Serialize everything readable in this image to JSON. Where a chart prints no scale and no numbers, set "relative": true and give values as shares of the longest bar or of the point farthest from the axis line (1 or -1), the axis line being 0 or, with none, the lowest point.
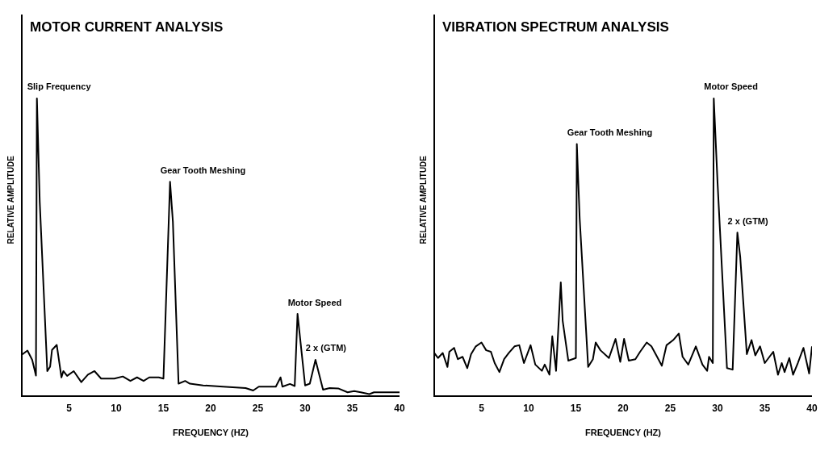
{
  "chart_data": [
    {
      "type": "line",
      "title": "MOTOR CURRENT ANALYSIS",
      "xlabel": "FREQUENCY (HZ)",
      "ylabel": "RELATIVE AMPLITUDE",
      "relative": true,
      "xlim": [
        0,
        40
      ],
      "xticks": [
        5,
        10,
        15,
        20,
        25,
        30,
        35,
        40
      ],
      "legend": false,
      "marker": "none",
      "line_style": "solid",
      "series": [
        {
          "color": "#000000",
          "x": [
            0,
            0.6,
            1.1,
            1.5,
            1.6,
            1.9,
            2.7,
            3.0,
            3.2,
            3.7,
            4.2,
            4.4,
            4.8,
            5.5,
            6.3,
            7.0,
            7.7,
            8.4,
            9.8,
            10.7,
            11.5,
            12.2,
            12.9,
            13.5,
            14.5,
            15.0,
            15.7,
            16.0,
            16.6,
            17.3,
            17.8,
            19.2,
            21.3,
            23.7,
            24.5,
            25.1,
            26.9,
            27.4,
            27.6,
            28.4,
            28.9,
            29.2,
            30.0,
            30.5,
            31.1,
            31.9,
            32.6,
            33.5,
            34.5,
            35.2,
            35.9,
            36.8,
            37.3,
            40
          ],
          "values": [
            0.14,
            0.154,
            0.123,
            0.07,
            1.0,
            0.653,
            0.085,
            0.1,
            0.156,
            0.173,
            0.064,
            0.085,
            0.069,
            0.085,
            0.048,
            0.073,
            0.085,
            0.06,
            0.06,
            0.067,
            0.052,
            0.064,
            0.052,
            0.064,
            0.064,
            0.06,
            0.72,
            0.586,
            0.043,
            0.052,
            0.043,
            0.037,
            0.033,
            0.028,
            0.02,
            0.033,
            0.033,
            0.064,
            0.033,
            0.042,
            0.035,
            0.277,
            0.037,
            0.043,
            0.123,
            0.023,
            0.028,
            0.027,
            0.014,
            0.018,
            0.014,
            0.008,
            0.014,
            0.014
          ]
        }
      ],
      "annotations": [
        {
          "text": "Slip Frequency",
          "x": 1.6,
          "y": 1.0
        },
        {
          "text": "Gear Tooth Meshing",
          "x": 15.7,
          "y": 0.72
        },
        {
          "text": "Motor Speed",
          "x": 29.2,
          "y": 0.277
        },
        {
          "text": "2 x (GTM)",
          "x": 31.1,
          "y": 0.123
        }
      ]
    },
    {
      "type": "line",
      "title": "VIBRATION SPECTRUM ANALYSIS",
      "xlabel": "FREQUENCY (HZ)",
      "ylabel": "RELATIVE AMPLITUDE",
      "relative": true,
      "xlim": [
        0,
        40
      ],
      "xticks": [
        5,
        10,
        15,
        20,
        25,
        30,
        35,
        40
      ],
      "legend": false,
      "marker": "none",
      "line_style": "solid",
      "series": [
        {
          "color": "#000000",
          "x": [
            0,
            0.4,
            0.9,
            1.4,
            1.6,
            2.1,
            2.5,
            3.0,
            3.5,
            3.9,
            4.4,
            5.0,
            5.5,
            6.0,
            6.4,
            6.9,
            7.4,
            7.9,
            8.5,
            9.0,
            9.5,
            10.2,
            10.7,
            11.4,
            11.7,
            12.2,
            12.5,
            12.9,
            13.4,
            13.6,
            14.2,
            15.0,
            15.1,
            15.4,
            16.3,
            16.8,
            17.1,
            17.6,
            18.5,
            19.2,
            19.7,
            20.1,
            20.6,
            21.3,
            21.8,
            22.5,
            23.0,
            23.6,
            24.1,
            24.6,
            25.3,
            25.9,
            26.3,
            26.9,
            27.7,
            28.4,
            28.9,
            29.1,
            29.5,
            29.6,
            30.0,
            31.0,
            31.6,
            32.1,
            32.4,
            33.1,
            33.6,
            34.0,
            34.5,
            35.0,
            35.9,
            36.4,
            36.8,
            37.1,
            37.6,
            38.0,
            38.5,
            39.1,
            39.7,
            40
          ],
          "values": [
            0.146,
            0.129,
            0.146,
            0.099,
            0.15,
            0.163,
            0.125,
            0.133,
            0.095,
            0.142,
            0.168,
            0.181,
            0.155,
            0.15,
            0.112,
            0.082,
            0.125,
            0.146,
            0.168,
            0.172,
            0.112,
            0.172,
            0.107,
            0.086,
            0.107,
            0.073,
            0.202,
            0.086,
            0.383,
            0.254,
            0.12,
            0.129,
            0.847,
            0.598,
            0.099,
            0.125,
            0.181,
            0.155,
            0.129,
            0.193,
            0.116,
            0.193,
            0.12,
            0.125,
            0.15,
            0.181,
            0.168,
            0.133,
            0.103,
            0.172,
            0.189,
            0.211,
            0.133,
            0.107,
            0.168,
            0.107,
            0.086,
            0.133,
            0.112,
            1.0,
            0.718,
            0.095,
            0.09,
            0.55,
            0.469,
            0.142,
            0.189,
            0.138,
            0.168,
            0.112,
            0.15,
            0.073,
            0.112,
            0.082,
            0.129,
            0.073,
            0.112,
            0.163,
            0.077,
            0.168
          ]
        }
      ],
      "annotations": [
        {
          "text": "Gear Tooth Meshing",
          "x": 15.1,
          "y": 0.847
        },
        {
          "text": "Motor Speed",
          "x": 29.6,
          "y": 1.0
        },
        {
          "text": "2 x (GTM)",
          "x": 32.1,
          "y": 0.55
        }
      ]
    }
  ]
}
